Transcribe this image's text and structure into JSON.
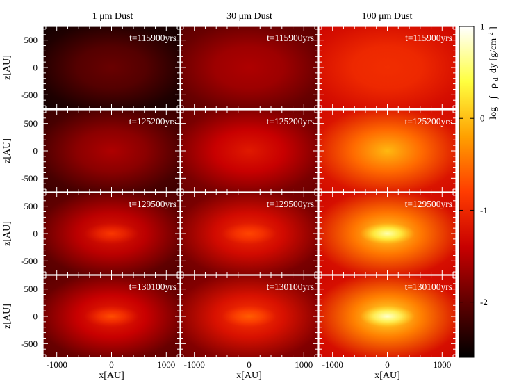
{
  "chart_data": {
    "type": "heatmap",
    "column_titles": [
      "1 μm Dust",
      "30 μm Dust",
      "100 μm Dust"
    ],
    "row_times": [
      "t=115900yrs",
      "t=125200yrs",
      "t=129500yrs",
      "t=130100yrs"
    ],
    "xlabel": "x[AU]",
    "ylabel": "z[AU]",
    "x_ticks": [
      "-1000",
      "0",
      "1000"
    ],
    "y_ticks": [
      "500",
      "0",
      "-500"
    ],
    "xlim": [
      -1250,
      1250
    ],
    "ylim": [
      -750,
      750
    ],
    "colorbar": {
      "label": "log ∫ ρ_d dy [g/cm²]",
      "label_html_parts": [
        "log",
        "∫",
        "ρ",
        "d",
        "dy [g/cm",
        "2",
        "]"
      ],
      "ticks": [
        "1",
        "0",
        "-1",
        "-2"
      ],
      "range": [
        -2.6,
        1.0
      ],
      "colormap": [
        "#000000",
        "#600000",
        "#c80000",
        "#ff3c00",
        "#ffa000",
        "#ffff40",
        "#ffffff"
      ]
    },
    "panels_note_values_center_log": [
      [
        -1.95,
        -1.55,
        -0.95
      ],
      [
        -1.55,
        -1.15,
        -0.05
      ],
      [
        -1.15,
        -0.95,
        0.15
      ],
      [
        -1.05,
        -0.85,
        0.25
      ]
    ],
    "panels_edge_log": [
      [
        -2.5,
        -2.05,
        -1.35
      ],
      [
        -2.25,
        -1.95,
        -1.3
      ],
      [
        -2.1,
        -1.95,
        -1.35
      ],
      [
        -2.05,
        -1.9,
        -1.35
      ]
    ],
    "panels_core_peak_log": [
      [
        null,
        null,
        null
      ],
      [
        null,
        null,
        null
      ],
      [
        -0.85,
        -0.75,
        0.75
      ],
      [
        -0.7,
        -0.6,
        0.85
      ]
    ]
  }
}
